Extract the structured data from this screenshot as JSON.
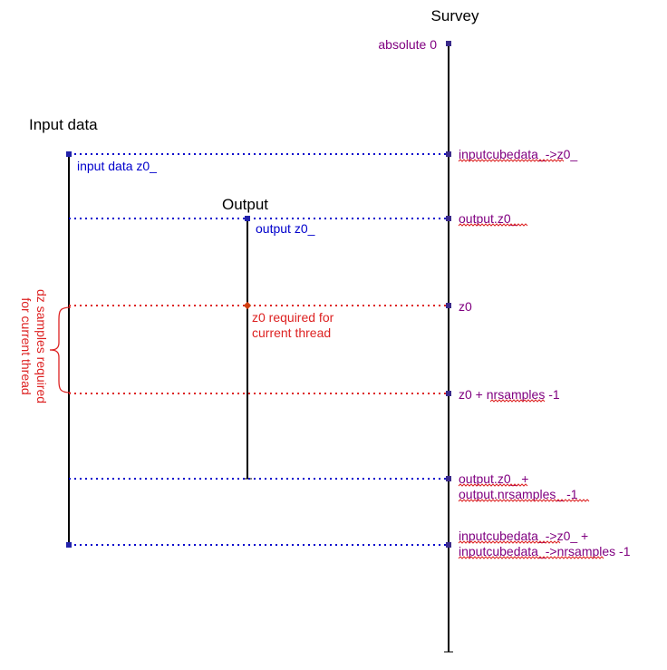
{
  "titles": {
    "survey": "Survey",
    "input": "Input data",
    "output": "Output"
  },
  "labels": {
    "absolute0": "absolute 0",
    "input_data_z0": "input data z0_",
    "output_z0": "output z0_",
    "z0_required_line1": "z0 required for",
    "z0_required_line2": "current thread",
    "dz_line1": "dz samples required",
    "dz_line2": "for current thread"
  },
  "survey_labels": {
    "inputcube_z0": "inputcubedata_->z0_",
    "output_z0": "output.z0_",
    "z0": "z0",
    "z0_nrsamples": "z0 + nrsamples -1",
    "output_end_line1": "output.z0_ +",
    "output_end_line2": "output.nrsamples_ -1",
    "inputcube_end_line1": "inputcubedata_->z0_ +",
    "inputcube_end_line2": "inputcubedata_->nrsamples -1"
  },
  "colors": {
    "axis": "#000000",
    "blue": "#0000cc",
    "red": "#dd2222",
    "purple": "#800080",
    "point_blue": "#2222aa",
    "point_purple": "#3a2a8a",
    "point_red": "#d04010"
  }
}
